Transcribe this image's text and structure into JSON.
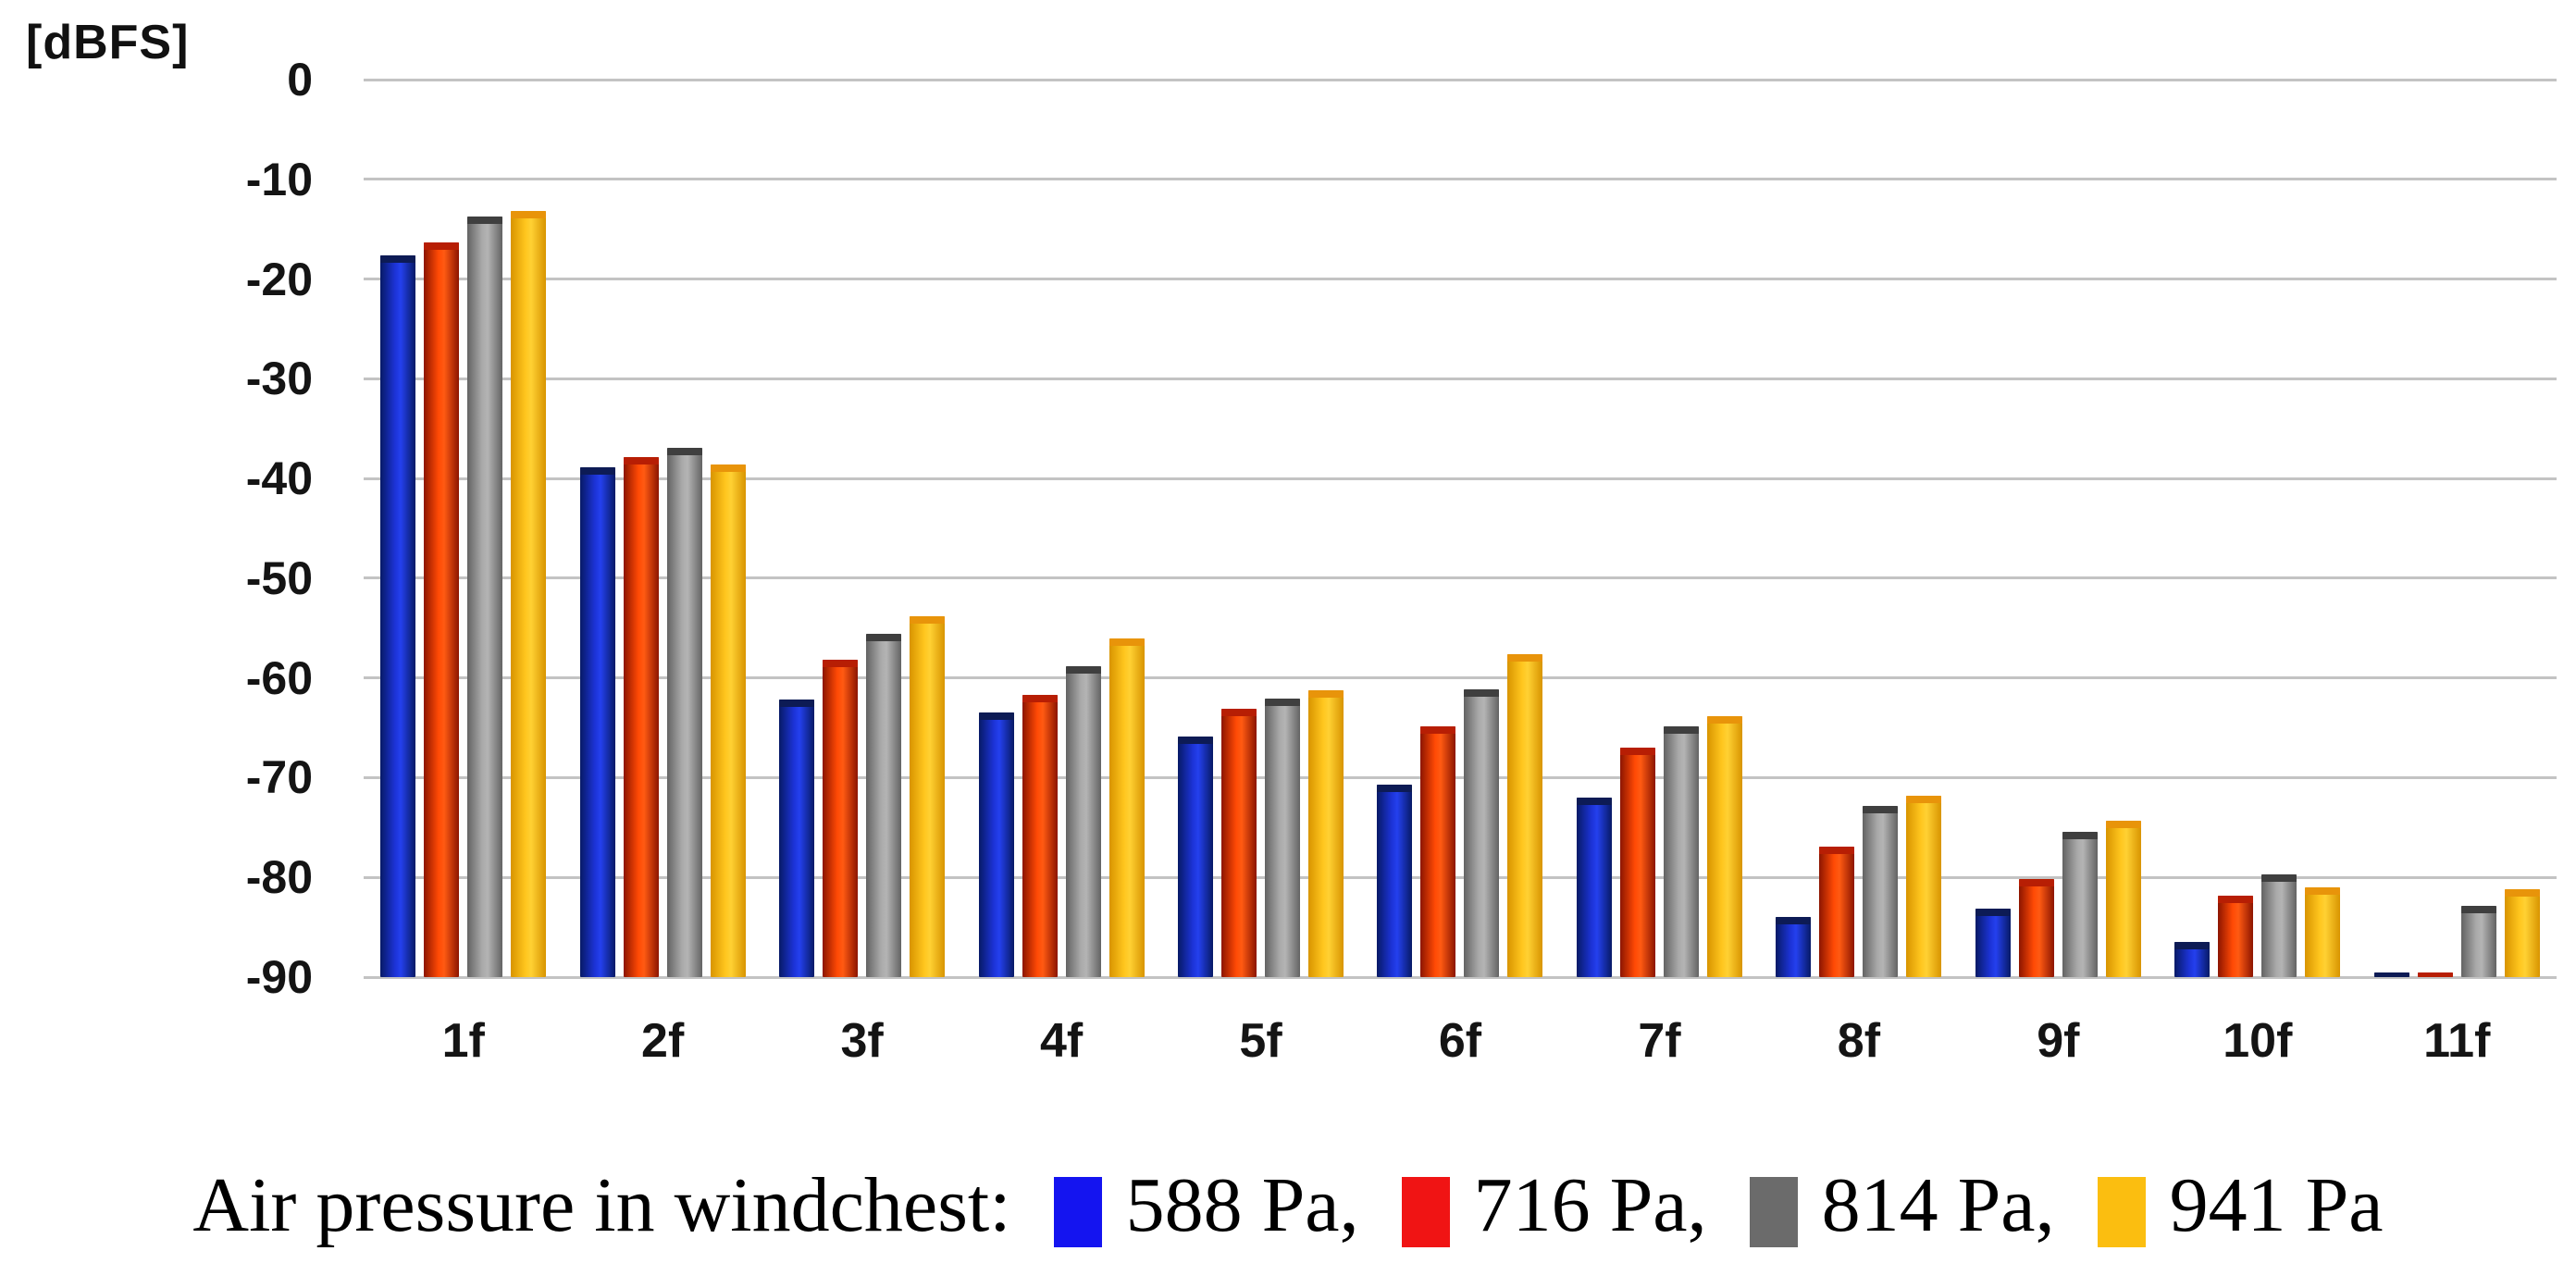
{
  "y_axis": {
    "unit_label": "[dBFS]",
    "ticks": [
      "0",
      "-10",
      "-20",
      "-30",
      "-40",
      "-50",
      "-60",
      "-70",
      "-80",
      "-90"
    ],
    "min": -90,
    "max": 0
  },
  "x_axis": {
    "tick_labels": [
      "1f",
      "2f",
      "3f",
      "4f",
      "5f",
      "6f",
      "7f",
      "8f",
      "9f",
      "10f",
      "11f"
    ]
  },
  "legend": {
    "prefix": "Air pressure in windchest:",
    "items": [
      {
        "label": "588 Pa,",
        "color": "#1414f0"
      },
      {
        "label": "716 Pa,",
        "color": "#f01414"
      },
      {
        "label": "814 Pa,",
        "color": "#6b6b6b"
      },
      {
        "label": "941 Pa",
        "color": "#fbbe10"
      }
    ]
  },
  "chart_data": {
    "type": "bar",
    "title": "",
    "ylabel": "[dBFS]",
    "xlabel": "",
    "ylim": [
      -90,
      0
    ],
    "grid": true,
    "legend_position": "bottom",
    "legend_prefix": "Air pressure in windchest:",
    "categories": [
      "1f",
      "2f",
      "3f",
      "4f",
      "5f",
      "6f",
      "7f",
      "8f",
      "9f",
      "10f",
      "11f"
    ],
    "series": [
      {
        "name": "588 Pa",
        "color": "#1414f0",
        "values": [
          -17.6,
          -38.9,
          -62.2,
          -63.5,
          -65.9,
          -70.7,
          -72.0,
          -84.0,
          -83.1,
          -86.5,
          -89.5
        ]
      },
      {
        "name": "716 Pa",
        "color": "#f01414",
        "values": [
          -16.3,
          -37.9,
          -58.2,
          -61.7,
          -63.1,
          -64.9,
          -67.0,
          -76.9,
          -80.2,
          -81.8,
          -89.5
        ]
      },
      {
        "name": "814 Pa",
        "color": "#6b6b6b",
        "values": [
          -13.7,
          -36.9,
          -55.6,
          -58.8,
          -62.1,
          -61.1,
          -64.9,
          -72.8,
          -75.4,
          -79.7,
          -82.9
        ]
      },
      {
        "name": "941 Pa",
        "color": "#fbbe10",
        "values": [
          -13.2,
          -38.6,
          -53.8,
          -56.0,
          -61.2,
          -57.6,
          -63.8,
          -71.8,
          -74.3,
          -81.0,
          -81.2
        ]
      }
    ]
  }
}
